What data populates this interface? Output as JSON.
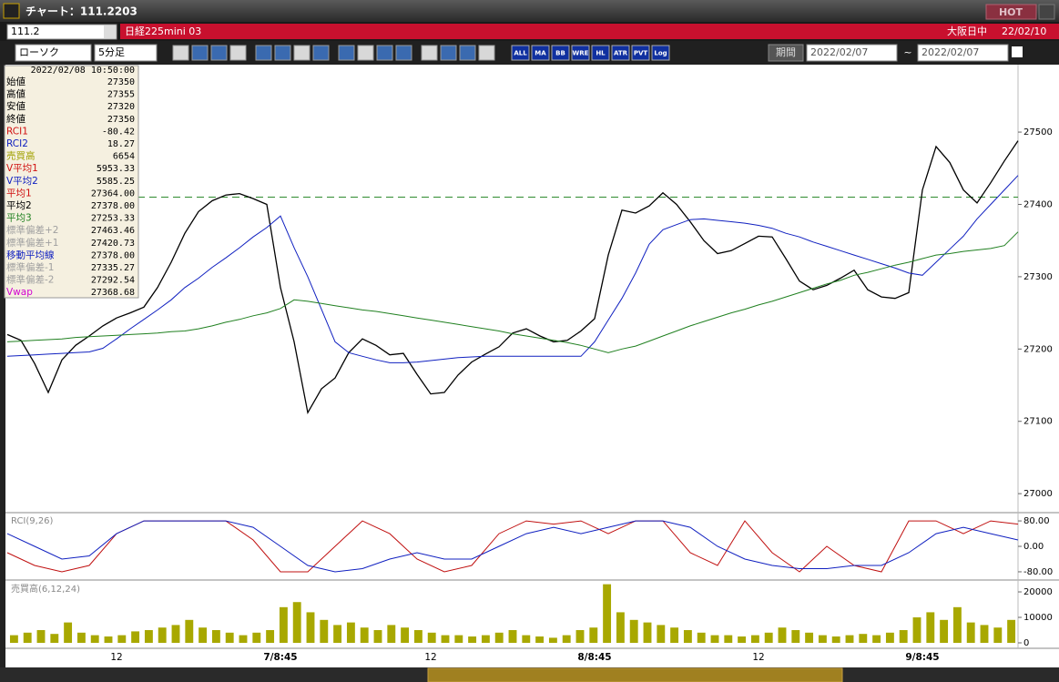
{
  "window": {
    "title": "チャート：111.2203",
    "hot": "HOT"
  },
  "toolbar": {
    "symbol": "111.2",
    "instrument": "日経225mini 03",
    "market": "大阪日中",
    "date": "22/02/10",
    "chart_type": "ローソク",
    "timeframe": "5分足",
    "buttons": [
      "ALL",
      "MA",
      "BB",
      "WRE",
      "HL",
      "ATR",
      "PVT",
      "Log"
    ],
    "period_label": "期間",
    "date_from": "2022/02/07",
    "range_sep": "~",
    "date_to": "2022/02/07"
  },
  "info_panel": {
    "datetime": "2022/02/08 10:50:00",
    "rows": [
      {
        "label": "始値",
        "value": "27350",
        "color": "#000000"
      },
      {
        "label": "高値",
        "value": "27355",
        "color": "#000000"
      },
      {
        "label": "安値",
        "value": "27320",
        "color": "#000000"
      },
      {
        "label": "終値",
        "value": "27350",
        "color": "#000000"
      },
      {
        "label": "RCI1",
        "value": "-80.42",
        "color": "#d01010"
      },
      {
        "label": "RCI2",
        "value": "18.27",
        "color": "#1020c0"
      },
      {
        "label": "売買高",
        "value": "6654",
        "color": "#a0a000"
      },
      {
        "label": "V平均1",
        "value": "5953.33",
        "color": "#d01010"
      },
      {
        "label": "V平均2",
        "value": "5585.25",
        "color": "#1020c0"
      },
      {
        "label": "平均1",
        "value": "27364.00",
        "color": "#d01010"
      },
      {
        "label": "平均2",
        "value": "27378.00",
        "color": "#000000"
      },
      {
        "label": "平均3",
        "value": "27253.33",
        "color": "#208020"
      },
      {
        "label": "標準偏差+2",
        "value": "27463.46",
        "color": "#a0a0a0"
      },
      {
        "label": "標準偏差+1",
        "value": "27420.73",
        "color": "#a0a0a0"
      },
      {
        "label": "移動平均線",
        "value": "27378.00",
        "color": "#1020c0"
      },
      {
        "label": "標準偏差-1",
        "value": "27335.27",
        "color": "#a0a0a0"
      },
      {
        "label": "標準偏差-2",
        "value": "27292.54",
        "color": "#a0a0a0"
      },
      {
        "label": "Vwap",
        "value": "27368.68",
        "color": "#d000d0"
      }
    ]
  },
  "chart_data": [
    {
      "type": "line",
      "ylim": [
        26975,
        27592
      ],
      "yticks": [
        27000,
        27100,
        27200,
        27300,
        27400,
        27500
      ],
      "categories": [
        null,
        null,
        null,
        null,
        null,
        null,
        null,
        null,
        "12",
        null,
        null,
        null,
        null,
        null,
        null,
        null,
        null,
        null,
        null,
        null,
        "7/8:45",
        null,
        null,
        null,
        null,
        null,
        null,
        null,
        null,
        null,
        null,
        "12",
        null,
        null,
        null,
        null,
        null,
        null,
        null,
        null,
        null,
        null,
        null,
        "8/8:45",
        null,
        null,
        null,
        null,
        null,
        null,
        null,
        null,
        null,
        null,
        null,
        "12",
        null,
        null,
        null,
        null,
        null,
        null,
        null,
        null,
        null,
        null,
        null,
        "9/8:45",
        null,
        null,
        null,
        null,
        null,
        null,
        null
      ],
      "reference_line": {
        "value": 27410,
        "color": "#2e8b2e"
      },
      "series": [
        {
          "color": "#000000",
          "values": [
            27220,
            27212,
            27180,
            27140,
            27185,
            27205,
            27218,
            27232,
            27243,
            27250,
            27258,
            27285,
            27320,
            27360,
            27390,
            27405,
            27413,
            27415,
            27408,
            27400,
            27285,
            27210,
            27112,
            27145,
            27160,
            27195,
            27214,
            27205,
            27192,
            27194,
            27165,
            27138,
            27140,
            27164,
            27182,
            27193,
            27203,
            27222,
            27228,
            27218,
            27210,
            27212,
            27225,
            27242,
            27330,
            27392,
            27388,
            27398,
            27416,
            27400,
            27376,
            27350,
            27332,
            27336,
            27346,
            27356,
            27355,
            27325,
            27294,
            27282,
            27288,
            27298,
            27309,
            27282,
            27272,
            27270,
            27278,
            27420,
            27480,
            27458,
            27420,
            27402,
            27430,
            27460,
            27488
          ]
        },
        {
          "color": "#1020c0",
          "values": [
            27190,
            27191,
            27192,
            27193,
            27194,
            27195,
            27196,
            27201,
            27214,
            27228,
            27241,
            27254,
            27268,
            27285,
            27298,
            27313,
            27326,
            27340,
            27355,
            27368,
            27384,
            27340,
            27300,
            27255,
            27210,
            27195,
            27190,
            27185,
            27181,
            27181,
            27182,
            27184,
            27186,
            27188,
            27189,
            27190,
            27190,
            27190,
            27190,
            27190,
            27190,
            27190,
            27190,
            27210,
            27240,
            27270,
            27305,
            27345,
            27365,
            27372,
            27379,
            27380,
            27378,
            27376,
            27374,
            27371,
            27367,
            27360,
            27355,
            27348,
            27342,
            27336,
            27330,
            27324,
            27318,
            27312,
            27305,
            27302,
            27320,
            27338,
            27356,
            27380,
            27400,
            27420,
            27440
          ]
        },
        {
          "color": "#208020",
          "values": [
            27210,
            27211,
            27212,
            27213,
            27214,
            27216,
            27217,
            27218,
            27219,
            27220,
            27221,
            27222,
            27224,
            27225,
            27228,
            27232,
            27237,
            27241,
            27246,
            27250,
            27256,
            27268,
            27266,
            27263,
            27260,
            27257,
            27254,
            27252,
            27249,
            27246,
            27243,
            27240,
            27237,
            27234,
            27231,
            27228,
            27225,
            27221,
            27218,
            27215,
            27212,
            27209,
            27205,
            27200,
            27195,
            27200,
            27204,
            27211,
            27218,
            27225,
            27232,
            27238,
            27244,
            27250,
            27255,
            27261,
            27266,
            27272,
            27278,
            27284,
            27290,
            27295,
            27302,
            27306,
            27311,
            27316,
            27320,
            27325,
            27330,
            27332,
            27335,
            27337,
            27339,
            27343,
            27362
          ]
        }
      ]
    },
    {
      "type": "line",
      "title": "RCI(9,26)",
      "ylim": [
        -103,
        106
      ],
      "yticks": [
        {
          "value": 80,
          "label": "80.00"
        },
        {
          "value": 0,
          "label": "0.00"
        },
        {
          "value": -80,
          "label": "-80.00"
        }
      ],
      "series": [
        {
          "color": "#c01010",
          "values": [
            -20,
            -60,
            -80,
            -60,
            40,
            80,
            80,
            80,
            80,
            20,
            -80,
            -80,
            0,
            80,
            40,
            -40,
            -80,
            -60,
            40,
            80,
            70,
            80,
            40,
            80,
            80,
            -20,
            -60,
            80,
            -20,
            -80,
            0,
            -60,
            -80,
            80,
            80,
            40,
            80,
            70
          ]
        },
        {
          "color": "#1020c0",
          "values": [
            40,
            0,
            -40,
            -30,
            40,
            80,
            80,
            80,
            80,
            60,
            0,
            -60,
            -80,
            -70,
            -40,
            -20,
            -40,
            -40,
            0,
            40,
            60,
            40,
            60,
            80,
            80,
            60,
            0,
            -40,
            -60,
            -70,
            -70,
            -60,
            -60,
            -20,
            40,
            60,
            40,
            20
          ]
        }
      ]
    },
    {
      "type": "bar",
      "title": "売買高(6,12,24)",
      "ylim": [
        0,
        24300
      ],
      "yticks": [
        0,
        10000,
        20000
      ],
      "color": "#a8a800",
      "values": [
        3000,
        4000,
        5000,
        3500,
        8000,
        4000,
        3000,
        2500,
        3000,
        4500,
        5000,
        6000,
        7000,
        9000,
        6000,
        5000,
        4000,
        3000,
        4000,
        5000,
        14000,
        16000,
        12000,
        9000,
        7000,
        8000,
        6000,
        5000,
        7000,
        6000,
        5000,
        4000,
        3000,
        3000,
        2500,
        3000,
        4000,
        5000,
        3000,
        2500,
        2000,
        3000,
        5000,
        6000,
        23000,
        12000,
        9000,
        8000,
        7000,
        6000,
        5000,
        4000,
        3000,
        3000,
        2500,
        3000,
        4000,
        6000,
        5000,
        4000,
        3000,
        2500,
        3000,
        3500,
        3000,
        4000,
        5000,
        10000,
        12000,
        9000,
        14000,
        8000,
        7000,
        6000,
        9000
      ]
    }
  ]
}
